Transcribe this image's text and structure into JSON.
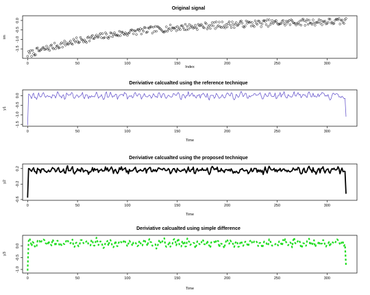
{
  "chart_data": [
    {
      "type": "scatter",
      "title": "Original signal",
      "xlabel": "Index",
      "ylabel": "im",
      "xlim": [
        -5,
        330
      ],
      "ylim": [
        -2.0,
        0.25
      ],
      "xticks": [
        0,
        50,
        100,
        150,
        200,
        250,
        300
      ],
      "yticks": [
        -1.5,
        -1.0,
        -0.5,
        0.0
      ],
      "ytick_labels": [
        "-1.5",
        "-1.0",
        "-0.5",
        "0.0"
      ],
      "series": [
        {
          "color": "#000000",
          "marker": "open-circle",
          "n": 320,
          "start": [
            0,
            -1.8
          ],
          "trend_end": [
            320,
            -0.05
          ],
          "noise": 0.18
        }
      ]
    },
    {
      "type": "line",
      "title": "Deriviative calcualted using the reference technique",
      "xlabel": "Time",
      "ylabel": "y1",
      "xlim": [
        -5,
        330
      ],
      "ylim": [
        -1.6,
        0.3
      ],
      "xticks": [
        0,
        50,
        100,
        150,
        200,
        250,
        300
      ],
      "yticks": [
        -1.5,
        -1.0,
        -0.5,
        0.0
      ],
      "ytick_labels": [
        "-1.5",
        "-1.0",
        "-0.5",
        "0.0"
      ],
      "series": [
        {
          "color": "#6a5acd",
          "width": 0.8,
          "n": 320,
          "start": -1.55,
          "end": -1.1,
          "base": 0.0,
          "amp": 0.18
        }
      ]
    },
    {
      "type": "line",
      "title": "Deriviative calcualted using the proposed technique",
      "xlabel": "Time",
      "ylabel": "y2",
      "xlim": [
        -5,
        330
      ],
      "ylim": [
        -0.62,
        0.32
      ],
      "xticks": [
        0,
        50,
        100,
        150,
        200,
        250,
        300
      ],
      "yticks": [
        -0.6,
        -0.2,
        0.2
      ],
      "ytick_labels": [
        "-0.6",
        "-0.2",
        "0.2"
      ],
      "series": [
        {
          "color": "#000000",
          "width": 1.8,
          "n": 320,
          "start": -0.55,
          "end": -0.45,
          "base": 0.16,
          "amp": 0.09
        }
      ]
    },
    {
      "type": "line",
      "title": "Deriviative calcualted using simple difference",
      "xlabel": "Time",
      "ylabel": "y3",
      "xlim": [
        -5,
        330
      ],
      "ylim": [
        -1.15,
        0.45
      ],
      "xticks": [
        0,
        50,
        100,
        150,
        200,
        250,
        300
      ],
      "yticks": [
        -1.0,
        -0.5,
        0.0
      ],
      "ytick_labels": [
        "-1.0",
        "-0.5",
        "0.0"
      ],
      "series": [
        {
          "color": "#22dd22",
          "width": 2.2,
          "dash": "3,3",
          "n": 320,
          "start": -1.05,
          "end": -0.85,
          "base": 0.12,
          "amp": 0.18
        }
      ]
    }
  ]
}
